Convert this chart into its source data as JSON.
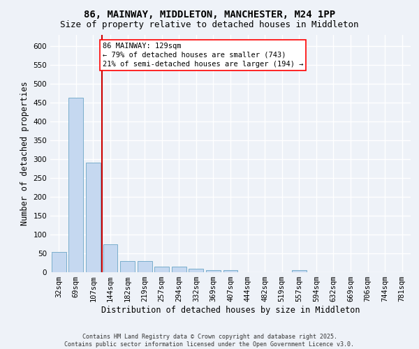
{
  "title_line1": "86, MAINWAY, MIDDLETON, MANCHESTER, M24 1PP",
  "title_line2": "Size of property relative to detached houses in Middleton",
  "xlabel": "Distribution of detached houses by size in Middleton",
  "ylabel": "Number of detached properties",
  "categories": [
    "32sqm",
    "69sqm",
    "107sqm",
    "144sqm",
    "182sqm",
    "219sqm",
    "257sqm",
    "294sqm",
    "332sqm",
    "369sqm",
    "407sqm",
    "444sqm",
    "482sqm",
    "519sqm",
    "557sqm",
    "594sqm",
    "632sqm",
    "669sqm",
    "706sqm",
    "744sqm",
    "781sqm"
  ],
  "values": [
    53,
    463,
    290,
    75,
    30,
    30,
    14,
    14,
    10,
    5,
    5,
    0,
    0,
    0,
    5,
    0,
    0,
    0,
    0,
    0,
    0
  ],
  "bar_color": "#c5d8f0",
  "bar_edge_color": "#7aaecc",
  "vline_x_idx": 3,
  "vline_color": "#cc0000",
  "annotation_line1": "86 MAINWAY: 129sqm",
  "annotation_line2": "← 79% of detached houses are smaller (743)",
  "annotation_line3": "21% of semi-detached houses are larger (194) →",
  "ylim": [
    0,
    630
  ],
  "yticks": [
    0,
    50,
    100,
    150,
    200,
    250,
    300,
    350,
    400,
    450,
    500,
    550,
    600
  ],
  "background_color": "#eef2f8",
  "grid_color": "#ffffff",
  "footer_text": "Contains HM Land Registry data © Crown copyright and database right 2025.\nContains public sector information licensed under the Open Government Licence v3.0.",
  "title_fontsize": 10,
  "subtitle_fontsize": 9,
  "axis_label_fontsize": 8.5,
  "tick_fontsize": 7.5,
  "annotation_fontsize": 7.5,
  "footer_fontsize": 6
}
